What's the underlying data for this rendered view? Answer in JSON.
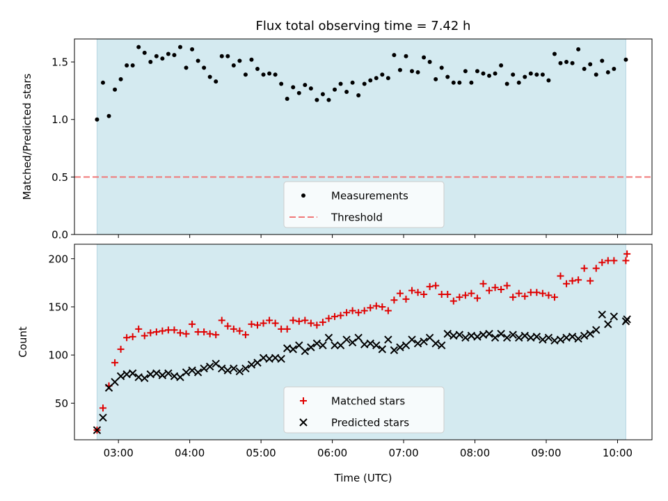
{
  "figure": {
    "title": "Flux total observing time = 7.42 h",
    "xlabel": "Time (UTC)",
    "x_tick_labels": [
      "03:00",
      "04:00",
      "05:00",
      "06:00",
      "07:00",
      "08:00",
      "09:00",
      "10:00"
    ]
  },
  "colors": {
    "shade": "#d4eaf0",
    "shade_edge": "#b7d6e1",
    "threshold": "#f07777",
    "matched": "#e00000",
    "predicted": "#000000",
    "measurement": "#000000"
  },
  "chart_data": [
    {
      "type": "scatter",
      "ylabel": "Matched/Predicted stars",
      "xlim": [
        "02:23",
        "10:29"
      ],
      "ylim": [
        0,
        1.7
      ],
      "y_ticks": [
        "0.0",
        "0.5",
        "1.0",
        "1.5"
      ],
      "observing_window": [
        "02:42",
        "10:07"
      ],
      "threshold": 0.5,
      "legend": {
        "position": "lower-center",
        "entries": [
          "Measurements",
          "Threshold"
        ]
      },
      "series": [
        {
          "name": "Measurements",
          "marker": "dot",
          "x": [
            "02:42",
            "02:47",
            "02:52",
            "02:57",
            "03:02",
            "03:07",
            "03:12",
            "03:17",
            "03:22",
            "03:27",
            "03:32",
            "03:37",
            "03:42",
            "03:47",
            "03:52",
            "03:57",
            "04:02",
            "04:07",
            "04:12",
            "04:17",
            "04:22",
            "04:27",
            "04:32",
            "04:37",
            "04:42",
            "04:47",
            "04:52",
            "04:57",
            "05:02",
            "05:07",
            "05:12",
            "05:17",
            "05:22",
            "05:27",
            "05:32",
            "05:37",
            "05:42",
            "05:47",
            "05:52",
            "05:57",
            "06:02",
            "06:07",
            "06:12",
            "06:17",
            "06:22",
            "06:27",
            "06:32",
            "06:37",
            "06:42",
            "06:47",
            "06:52",
            "06:57",
            "07:02",
            "07:07",
            "07:12",
            "07:17",
            "07:22",
            "07:27",
            "07:32",
            "07:37",
            "07:42",
            "07:47",
            "07:52",
            "07:57",
            "08:02",
            "08:07",
            "08:12",
            "08:17",
            "08:22",
            "08:27",
            "08:32",
            "08:37",
            "08:42",
            "08:47",
            "08:52",
            "08:57",
            "09:02",
            "09:07",
            "09:12",
            "09:17",
            "09:22",
            "09:27",
            "09:32",
            "09:37",
            "09:42",
            "09:47",
            "09:52",
            "09:57",
            "10:07"
          ],
          "y": [
            1.0,
            1.32,
            1.03,
            1.26,
            1.35,
            1.47,
            1.47,
            1.63,
            1.58,
            1.5,
            1.55,
            1.53,
            1.57,
            1.56,
            1.63,
            1.45,
            1.61,
            1.51,
            1.45,
            1.37,
            1.33,
            1.55,
            1.55,
            1.47,
            1.51,
            1.39,
            1.52,
            1.44,
            1.39,
            1.4,
            1.39,
            1.31,
            1.18,
            1.28,
            1.23,
            1.3,
            1.27,
            1.17,
            1.22,
            1.17,
            1.26,
            1.31,
            1.24,
            1.32,
            1.21,
            1.31,
            1.34,
            1.36,
            1.39,
            1.36,
            1.56,
            1.43,
            1.55,
            1.42,
            1.41,
            1.54,
            1.5,
            1.35,
            1.45,
            1.37,
            1.32,
            1.32,
            1.42,
            1.32,
            1.42,
            1.4,
            1.38,
            1.4,
            1.47,
            1.31,
            1.39,
            1.32,
            1.37,
            1.4,
            1.39,
            1.39,
            1.34,
            1.57,
            1.49,
            1.5,
            1.49,
            1.61,
            1.44,
            1.48,
            1.39,
            1.51,
            1.41,
            1.44,
            1.52
          ]
        }
      ]
    },
    {
      "type": "scatter",
      "ylabel": "Count",
      "xlim": [
        "02:23",
        "10:29"
      ],
      "ylim": [
        12,
        215
      ],
      "y_ticks": [
        "50",
        "100",
        "150",
        "200"
      ],
      "observing_window": [
        "02:42",
        "10:07"
      ],
      "legend": {
        "position": "lower-center",
        "entries": [
          "Matched stars",
          "Predicted stars"
        ]
      },
      "series": [
        {
          "name": "Matched stars",
          "marker": "plus",
          "x": [
            "02:42",
            "02:47",
            "02:52",
            "02:57",
            "03:02",
            "03:07",
            "03:12",
            "03:17",
            "03:22",
            "03:27",
            "03:32",
            "03:37",
            "03:42",
            "03:47",
            "03:52",
            "03:57",
            "04:02",
            "04:07",
            "04:12",
            "04:17",
            "04:22",
            "04:27",
            "04:32",
            "04:37",
            "04:42",
            "04:47",
            "04:52",
            "04:57",
            "05:02",
            "05:07",
            "05:12",
            "05:17",
            "05:22",
            "05:27",
            "05:32",
            "05:37",
            "05:42",
            "05:47",
            "05:52",
            "05:57",
            "06:02",
            "06:07",
            "06:12",
            "06:17",
            "06:22",
            "06:27",
            "06:32",
            "06:37",
            "06:42",
            "06:47",
            "06:52",
            "06:57",
            "07:02",
            "07:07",
            "07:12",
            "07:17",
            "07:22",
            "07:27",
            "07:32",
            "07:37",
            "07:42",
            "07:47",
            "07:52",
            "07:57",
            "08:02",
            "08:07",
            "08:12",
            "08:17",
            "08:22",
            "08:27",
            "08:32",
            "08:37",
            "08:42",
            "08:47",
            "08:52",
            "08:57",
            "09:02",
            "09:07",
            "09:12",
            "09:17",
            "09:22",
            "09:27",
            "09:32",
            "09:37",
            "09:42",
            "09:47",
            "09:52",
            "09:57",
            "10:07",
            "10:08"
          ],
          "y": [
            22,
            45,
            68,
            92,
            106,
            118,
            119,
            127,
            120,
            123,
            124,
            125,
            126,
            126,
            123,
            122,
            132,
            124,
            124,
            122,
            121,
            136,
            130,
            127,
            125,
            121,
            132,
            131,
            133,
            136,
            133,
            127,
            127,
            136,
            135,
            136,
            133,
            131,
            134,
            138,
            140,
            141,
            144,
            146,
            144,
            146,
            149,
            151,
            150,
            146,
            157,
            164,
            158,
            167,
            165,
            163,
            171,
            172,
            163,
            163,
            156,
            160,
            162,
            164,
            159,
            174,
            167,
            170,
            168,
            172,
            160,
            164,
            161,
            165,
            165,
            164,
            162,
            160,
            182,
            174,
            177,
            178,
            190,
            177,
            190,
            196,
            198,
            198,
            198,
            205
          ]
        },
        {
          "name": "Predicted stars",
          "marker": "x",
          "x": [
            "02:42",
            "02:47",
            "02:52",
            "02:57",
            "03:02",
            "03:07",
            "03:12",
            "03:17",
            "03:22",
            "03:27",
            "03:32",
            "03:37",
            "03:42",
            "03:47",
            "03:52",
            "03:57",
            "04:02",
            "04:07",
            "04:12",
            "04:17",
            "04:22",
            "04:27",
            "04:32",
            "04:37",
            "04:42",
            "04:47",
            "04:52",
            "04:57",
            "05:02",
            "05:07",
            "05:12",
            "05:17",
            "05:22",
            "05:27",
            "05:32",
            "05:37",
            "05:42",
            "05:47",
            "05:52",
            "05:57",
            "06:02",
            "06:07",
            "06:12",
            "06:17",
            "06:22",
            "06:27",
            "06:32",
            "06:37",
            "06:42",
            "06:47",
            "06:52",
            "06:57",
            "07:02",
            "07:07",
            "07:12",
            "07:17",
            "07:22",
            "07:27",
            "07:32",
            "07:37",
            "07:42",
            "07:47",
            "07:52",
            "07:57",
            "08:02",
            "08:07",
            "08:12",
            "08:17",
            "08:22",
            "08:27",
            "08:32",
            "08:37",
            "08:42",
            "08:47",
            "08:52",
            "08:57",
            "09:02",
            "09:07",
            "09:12",
            "09:17",
            "09:22",
            "09:27",
            "09:32",
            "09:37",
            "09:42",
            "09:47",
            "09:52",
            "09:57",
            "10:07",
            "10:08"
          ],
          "y": [
            22,
            35,
            66,
            72,
            78,
            80,
            81,
            77,
            76,
            80,
            81,
            79,
            81,
            78,
            77,
            82,
            84,
            82,
            86,
            88,
            91,
            86,
            84,
            86,
            83,
            86,
            90,
            92,
            97,
            96,
            97,
            96,
            107,
            106,
            110,
            104,
            108,
            112,
            110,
            118,
            110,
            110,
            116,
            113,
            118,
            111,
            112,
            110,
            106,
            116,
            105,
            108,
            110,
            116,
            112,
            114,
            118,
            112,
            110,
            122,
            120,
            121,
            118,
            120,
            119,
            121,
            122,
            118,
            122,
            118,
            121,
            118,
            120,
            118,
            119,
            116,
            118,
            115,
            116,
            118,
            119,
            117,
            120,
            122,
            126,
            142,
            132,
            140,
            135,
            137
          ]
        }
      ]
    }
  ]
}
